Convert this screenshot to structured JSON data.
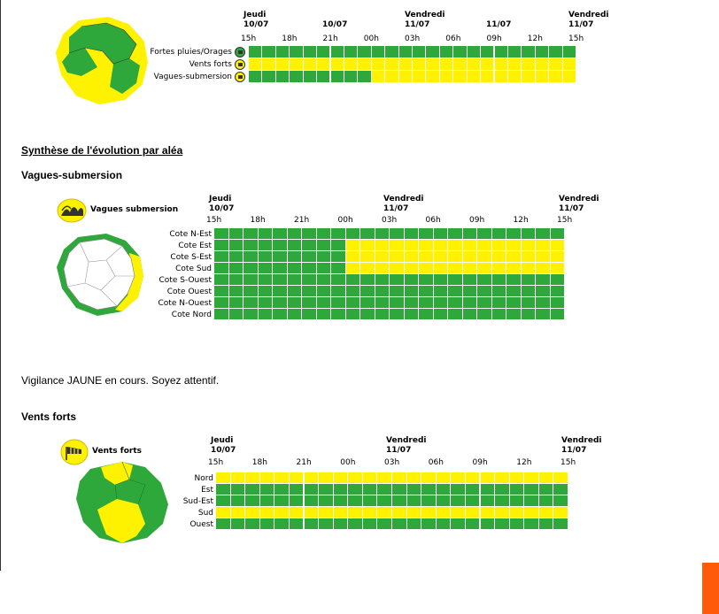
{
  "colors": {
    "green": "#2ea83a",
    "yellow": "#fff200",
    "orange": "#ff5a0a",
    "cell_border": "#ffffff"
  },
  "days": [
    {
      "name": "Jeudi",
      "date": "10/07"
    },
    {
      "name": "",
      "date": "10/07"
    },
    {
      "name": "Vendredi",
      "date": "11/07"
    },
    {
      "name": "",
      "date": "11/07"
    },
    {
      "name": "Vendredi",
      "date": "11/07"
    }
  ],
  "days_short": [
    {
      "name": "Jeudi",
      "date": "10/07"
    },
    {
      "name": "Vendredi",
      "date": "11/07"
    },
    {
      "name": "Vendredi",
      "date": "11/07"
    }
  ],
  "ticks": [
    "15h",
    "18h",
    "21h",
    "00h",
    "03h",
    "06h",
    "09h",
    "12h",
    "15h"
  ],
  "overview": {
    "rows": [
      {
        "label": "Fortes pluies/Orages",
        "icon": "rain-storm-icon",
        "levels": [
          "G",
          "G",
          "G",
          "G",
          "G",
          "G",
          "G",
          "G",
          "G",
          "G",
          "G",
          "G",
          "G",
          "G",
          "G",
          "G",
          "G",
          "G",
          "G",
          "G",
          "G",
          "G",
          "G",
          "G"
        ]
      },
      {
        "label": "Vents forts",
        "icon": "wind-icon",
        "levels": [
          "Y",
          "Y",
          "Y",
          "Y",
          "Y",
          "Y",
          "Y",
          "Y",
          "Y",
          "Y",
          "Y",
          "Y",
          "Y",
          "Y",
          "Y",
          "Y",
          "Y",
          "Y",
          "Y",
          "Y",
          "Y",
          "Y",
          "Y",
          "Y"
        ]
      },
      {
        "label": "Vagues-submersion",
        "icon": "wave-icon",
        "levels": [
          "G",
          "G",
          "G",
          "G",
          "G",
          "G",
          "G",
          "G",
          "G",
          "Y",
          "Y",
          "Y",
          "Y",
          "Y",
          "Y",
          "Y",
          "Y",
          "Y",
          "Y",
          "Y",
          "Y",
          "Y",
          "Y",
          "Y"
        ]
      }
    ]
  },
  "synthese_title": "Synthèse de l'évolution par aléa",
  "vagues": {
    "title": "Vagues-submersion",
    "legend": "Vagues submersion",
    "rows": [
      {
        "label": "Cote N-Est",
        "levels": [
          "G",
          "G",
          "G",
          "G",
          "G",
          "G",
          "G",
          "G",
          "G",
          "G",
          "G",
          "G",
          "G",
          "G",
          "G",
          "G",
          "G",
          "G",
          "G",
          "G",
          "G",
          "G",
          "G",
          "G"
        ]
      },
      {
        "label": "Cote Est",
        "levels": [
          "G",
          "G",
          "G",
          "G",
          "G",
          "G",
          "G",
          "G",
          "G",
          "Y",
          "Y",
          "Y",
          "Y",
          "Y",
          "Y",
          "Y",
          "Y",
          "Y",
          "Y",
          "Y",
          "Y",
          "Y",
          "Y",
          "Y"
        ]
      },
      {
        "label": "Cote S-Est",
        "levels": [
          "G",
          "G",
          "G",
          "G",
          "G",
          "G",
          "G",
          "G",
          "G",
          "Y",
          "Y",
          "Y",
          "Y",
          "Y",
          "Y",
          "Y",
          "Y",
          "Y",
          "Y",
          "Y",
          "Y",
          "Y",
          "Y",
          "Y"
        ]
      },
      {
        "label": "Cote Sud",
        "levels": [
          "G",
          "G",
          "G",
          "G",
          "G",
          "G",
          "G",
          "G",
          "G",
          "Y",
          "Y",
          "Y",
          "Y",
          "Y",
          "Y",
          "Y",
          "Y",
          "Y",
          "Y",
          "Y",
          "Y",
          "Y",
          "Y",
          "Y"
        ]
      },
      {
        "label": "Cote S-Ouest",
        "levels": [
          "G",
          "G",
          "G",
          "G",
          "G",
          "G",
          "G",
          "G",
          "G",
          "G",
          "G",
          "G",
          "G",
          "G",
          "G",
          "G",
          "G",
          "G",
          "G",
          "G",
          "G",
          "G",
          "G",
          "G"
        ]
      },
      {
        "label": "Cote Ouest",
        "levels": [
          "G",
          "G",
          "G",
          "G",
          "G",
          "G",
          "G",
          "G",
          "G",
          "G",
          "G",
          "G",
          "G",
          "G",
          "G",
          "G",
          "G",
          "G",
          "G",
          "G",
          "G",
          "G",
          "G",
          "G"
        ]
      },
      {
        "label": "Cote N-Ouest",
        "levels": [
          "G",
          "G",
          "G",
          "G",
          "G",
          "G",
          "G",
          "G",
          "G",
          "G",
          "G",
          "G",
          "G",
          "G",
          "G",
          "G",
          "G",
          "G",
          "G",
          "G",
          "G",
          "G",
          "G",
          "G"
        ]
      },
      {
        "label": "Cote Nord",
        "levels": [
          "G",
          "G",
          "G",
          "G",
          "G",
          "G",
          "G",
          "G",
          "G",
          "G",
          "G",
          "G",
          "G",
          "G",
          "G",
          "G",
          "G",
          "G",
          "G",
          "G",
          "G",
          "G",
          "G",
          "G"
        ]
      }
    ]
  },
  "vigilance_text": "Vigilance JAUNE en cours. Soyez attentif.",
  "vents": {
    "title": "Vents forts",
    "legend": "Vents forts",
    "rows": [
      {
        "label": "Nord",
        "levels": [
          "Y",
          "Y",
          "Y",
          "Y",
          "Y",
          "Y",
          "Y",
          "Y",
          "Y",
          "Y",
          "Y",
          "Y",
          "Y",
          "Y",
          "Y",
          "Y",
          "Y",
          "Y",
          "Y",
          "Y",
          "Y",
          "Y",
          "Y",
          "Y"
        ]
      },
      {
        "label": "Est",
        "levels": [
          "G",
          "G",
          "G",
          "G",
          "G",
          "G",
          "G",
          "G",
          "G",
          "G",
          "G",
          "G",
          "G",
          "G",
          "G",
          "G",
          "G",
          "G",
          "G",
          "G",
          "G",
          "G",
          "G",
          "G"
        ]
      },
      {
        "label": "Sud-Est",
        "levels": [
          "G",
          "G",
          "G",
          "G",
          "G",
          "G",
          "G",
          "G",
          "G",
          "G",
          "G",
          "G",
          "G",
          "G",
          "G",
          "G",
          "G",
          "G",
          "G",
          "G",
          "G",
          "G",
          "G",
          "G"
        ]
      },
      {
        "label": "Sud",
        "levels": [
          "Y",
          "Y",
          "Y",
          "Y",
          "Y",
          "Y",
          "Y",
          "Y",
          "Y",
          "Y",
          "Y",
          "Y",
          "Y",
          "Y",
          "Y",
          "Y",
          "Y",
          "Y",
          "Y",
          "Y",
          "Y",
          "Y",
          "Y",
          "Y"
        ]
      },
      {
        "label": "Ouest",
        "levels": [
          "G",
          "G",
          "G",
          "G",
          "G",
          "G",
          "G",
          "G",
          "G",
          "G",
          "G",
          "G",
          "G",
          "G",
          "G",
          "G",
          "G",
          "G",
          "G",
          "G",
          "G",
          "G",
          "G",
          "G"
        ]
      }
    ]
  }
}
